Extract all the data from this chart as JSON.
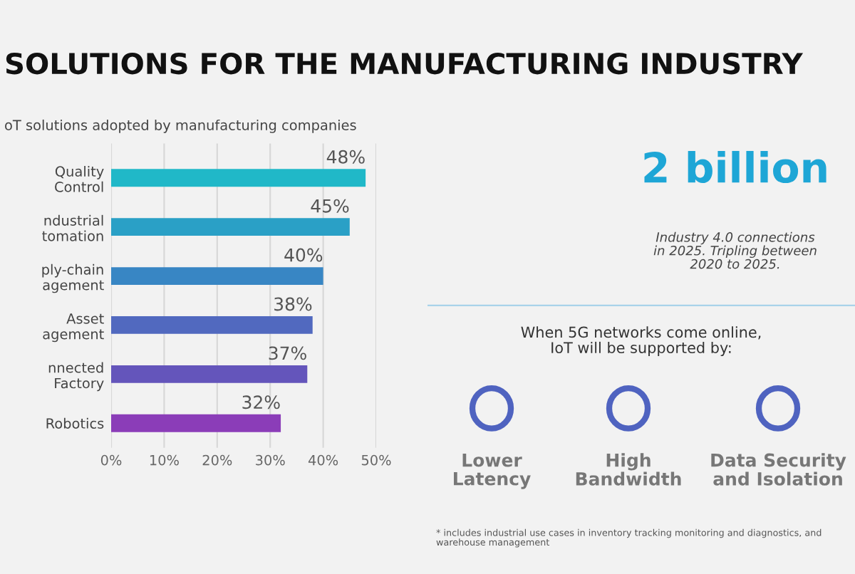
{
  "chart_data": [
    {
      "type": "bar",
      "orientation": "horizontal",
      "title": "SOLUTIONS FOR THE MANUFACTURING INDUSTRY",
      "subtitle": "oT solutions adopted by manufacturing companies",
      "categories": [
        "Quality\nControl",
        "ndustrial\ntomation",
        "ply-chain\nagement",
        "Asset\nagement",
        "nnected\nFactory",
        "Robotics"
      ],
      "values": [
        48,
        45,
        40,
        38,
        37,
        32
      ],
      "colors": [
        "#20b8c8",
        "#2aa0c6",
        "#3886c4",
        "#5169bf",
        "#6455bb",
        "#8b3db8"
      ],
      "value_labels": [
        "48%",
        "45%",
        "40%",
        "38%",
        "37%",
        "32%"
      ],
      "xlim": [
        0,
        50
      ],
      "xticks": [
        {
          "value": 0,
          "label": "0%"
        },
        {
          "value": 10,
          "label": "10%"
        },
        {
          "value": 20,
          "label": "20%"
        },
        {
          "value": 30,
          "label": "30%"
        },
        {
          "value": 40,
          "label": "40%"
        },
        {
          "value": 50,
          "label": "50%"
        }
      ],
      "grid": "x",
      "legend": false
    },
    {
      "type": "other",
      "annotations": [
        "2 billion",
        "Industry 4.0 connections\nin 2025. Tripling between\n2020 to 2025.",
        "When 5G networks come online,\nIoT will be supported by:",
        "Lower\nLatency",
        "High\nBandwidth",
        "Data Security\nand Isolation",
        "* includes industrial use cases in inventory tracking monitoring and diagnostics, and\nwarehouse management"
      ]
    }
  ]
}
